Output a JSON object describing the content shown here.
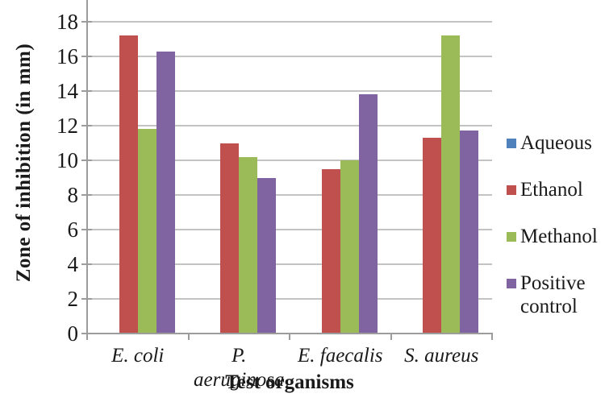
{
  "chart_data": {
    "type": "bar",
    "title": "",
    "xlabel": "Test organisms",
    "ylabel": "Zone of inhibition (in mm)",
    "categories": [
      "E. coli",
      "P. aeruginosa",
      "E. faecalis",
      "S. aureus"
    ],
    "series": [
      {
        "name": "Aqueous",
        "color": "#4F81BD",
        "values": [
          0,
          0,
          0,
          0
        ]
      },
      {
        "name": "Ethanol",
        "color": "#C0504D",
        "values": [
          17.2,
          11,
          9.5,
          11.3
        ]
      },
      {
        "name": "Methanol",
        "color": "#9BBB59",
        "values": [
          11.8,
          10.2,
          10,
          17.2
        ]
      },
      {
        "name": "Positive control",
        "color": "#8064A2",
        "values": [
          16.3,
          9,
          13.8,
          11.7
        ]
      }
    ],
    "y_ticks": [
      0,
      2,
      4,
      6,
      8,
      10,
      12,
      14,
      16,
      18
    ],
    "ylim": [
      0,
      18
    ],
    "grid": "horizontal",
    "legend_position": "right",
    "colors": {
      "gridline": "#C3C3C3",
      "axis": "#9C9C9C",
      "text": "#1A1A1A",
      "background": "#FFFFFF"
    }
  }
}
